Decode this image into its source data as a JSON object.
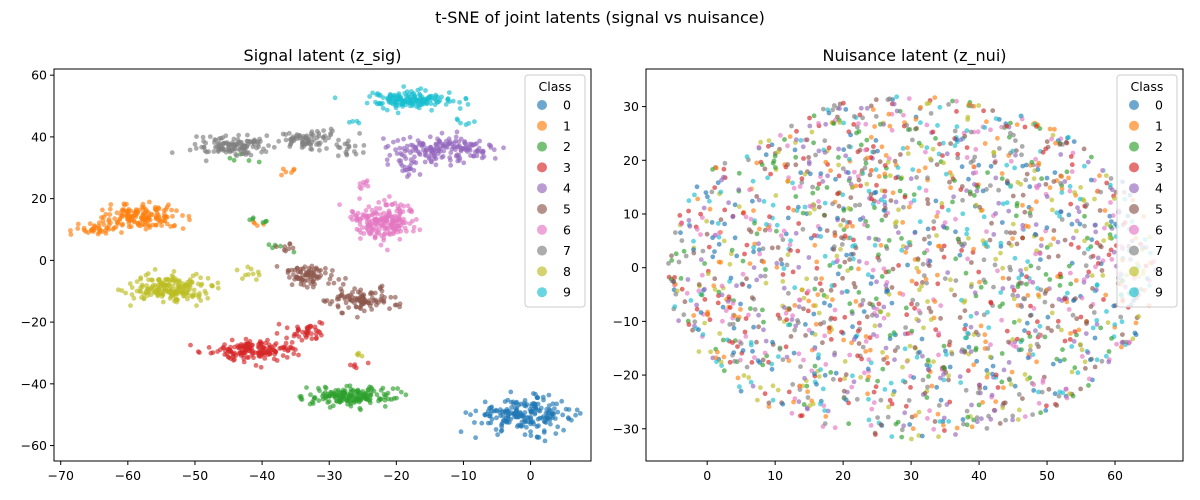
{
  "figure": {
    "suptitle": "t-SNE of joint latents (signal vs nuisance)"
  },
  "chart_data": [
    {
      "type": "scatter",
      "title": "Signal latent (z_sig)",
      "xlabel": "",
      "ylabel": "",
      "xlim": [
        -71,
        9
      ],
      "ylim": [
        -65,
        62
      ],
      "xticks": [
        -70,
        -60,
        -50,
        -40,
        -30,
        -20,
        -10,
        0
      ],
      "yticks": [
        -60,
        -40,
        -20,
        0,
        20,
        40,
        60
      ],
      "legend": {
        "title": "Class",
        "placement": "top-right"
      },
      "grid": false,
      "series": [
        {
          "name": "0",
          "color": "#1f77b4",
          "clusters": [
            {
              "cx": -1,
              "cy": -50,
              "rx": 6,
              "ry": 4.5,
              "n": 200
            }
          ]
        },
        {
          "name": "1",
          "color": "#ff7f0e",
          "clusters": [
            {
              "cx": -58,
              "cy": 14,
              "rx": 5.5,
              "ry": 3.2,
              "n": 160
            },
            {
              "cx": -65,
              "cy": 10,
              "rx": 2.5,
              "ry": 2,
              "n": 30
            },
            {
              "cx": -36,
              "cy": 29,
              "rx": 1,
              "ry": 1,
              "n": 6
            },
            {
              "cx": -41,
              "cy": 12,
              "rx": 1.2,
              "ry": 1,
              "n": 4
            }
          ]
        },
        {
          "name": "2",
          "color": "#2ca02c",
          "clusters": [
            {
              "cx": -27,
              "cy": -44,
              "rx": 5.5,
              "ry": 2.5,
              "n": 170
            },
            {
              "cx": -43,
              "cy": 33,
              "rx": 2,
              "ry": 2,
              "n": 5
            },
            {
              "cx": -40,
              "cy": 13,
              "rx": 2,
              "ry": 1,
              "n": 6
            },
            {
              "cx": -37,
              "cy": 4,
              "rx": 3,
              "ry": 2,
              "n": 5
            }
          ]
        },
        {
          "name": "3",
          "color": "#d62728",
          "clusters": [
            {
              "cx": -41,
              "cy": -29,
              "rx": 5.5,
              "ry": 2.8,
              "n": 160
            },
            {
              "cx": -33,
              "cy": -23,
              "rx": 2.5,
              "ry": 2.5,
              "n": 40
            },
            {
              "cx": -25,
              "cy": -34,
              "rx": 1.5,
              "ry": 0.8,
              "n": 5
            }
          ]
        },
        {
          "name": "4",
          "color": "#9467bd",
          "clusters": [
            {
              "cx": -13,
              "cy": 36,
              "rx": 6,
              "ry": 3.5,
              "n": 170
            },
            {
              "cx": -18,
              "cy": 30,
              "rx": 2,
              "ry": 2,
              "n": 20
            }
          ]
        },
        {
          "name": "5",
          "color": "#8c564b",
          "clusters": [
            {
              "cx": -25,
              "cy": -13,
              "rx": 4.5,
              "ry": 3,
              "n": 100
            },
            {
              "cx": -33,
              "cy": -5,
              "rx": 3.5,
              "ry": 3,
              "n": 80
            },
            {
              "cx": -36,
              "cy": 4,
              "rx": 1.5,
              "ry": 1.5,
              "n": 8
            }
          ]
        },
        {
          "name": "6",
          "color": "#e377c2",
          "clusters": [
            {
              "cx": -22,
              "cy": 13,
              "rx": 4,
              "ry": 5,
              "n": 200
            },
            {
              "cx": -25,
              "cy": 25,
              "rx": 1.5,
              "ry": 1.5,
              "n": 8
            }
          ]
        },
        {
          "name": "7",
          "color": "#7f7f7f",
          "clusters": [
            {
              "cx": -44,
              "cy": 37,
              "rx": 5,
              "ry": 3,
              "n": 120
            },
            {
              "cx": -33,
              "cy": 39,
              "rx": 4,
              "ry": 2.5,
              "n": 80
            },
            {
              "cx": -27,
              "cy": 35,
              "rx": 2,
              "ry": 2,
              "n": 15
            }
          ]
        },
        {
          "name": "8",
          "color": "#bcbd22",
          "clusters": [
            {
              "cx": -54,
              "cy": -9,
              "rx": 5,
              "ry": 3.5,
              "n": 190
            },
            {
              "cx": -42,
              "cy": -4,
              "rx": 1.5,
              "ry": 2,
              "n": 10
            },
            {
              "cx": -26,
              "cy": -31,
              "rx": 1,
              "ry": 1.5,
              "n": 4
            }
          ]
        },
        {
          "name": "9",
          "color": "#17becf",
          "clusters": [
            {
              "cx": -18,
              "cy": 52,
              "rx": 5,
              "ry": 2.2,
              "n": 160
            },
            {
              "cx": -10,
              "cy": 45,
              "rx": 1.5,
              "ry": 1,
              "n": 6
            },
            {
              "cx": -26,
              "cy": 45,
              "rx": 1,
              "ry": 1,
              "n": 4
            }
          ]
        }
      ]
    },
    {
      "type": "scatter",
      "title": "Nuisance latent (z_nui)",
      "xlabel": "",
      "ylabel": "",
      "xlim": [
        -9,
        70
      ],
      "ylim": [
        -36,
        37
      ],
      "xticks": [
        0,
        10,
        20,
        30,
        40,
        50,
        60
      ],
      "yticks": [
        -30,
        -20,
        -10,
        0,
        10,
        20,
        30
      ],
      "legend": {
        "title": "Class",
        "placement": "top-right"
      },
      "grid": false,
      "distribution": "mixed",
      "blob": {
        "cx": 30,
        "cy": 0,
        "rx": 36,
        "ry": 32,
        "n_per_class": 200
      },
      "series": [
        {
          "name": "0",
          "color": "#1f77b4"
        },
        {
          "name": "1",
          "color": "#ff7f0e"
        },
        {
          "name": "2",
          "color": "#2ca02c"
        },
        {
          "name": "3",
          "color": "#d62728"
        },
        {
          "name": "4",
          "color": "#9467bd"
        },
        {
          "name": "5",
          "color": "#8c564b"
        },
        {
          "name": "6",
          "color": "#e377c2"
        },
        {
          "name": "7",
          "color": "#7f7f7f"
        },
        {
          "name": "8",
          "color": "#bcbd22"
        },
        {
          "name": "9",
          "color": "#17becf"
        }
      ]
    }
  ]
}
